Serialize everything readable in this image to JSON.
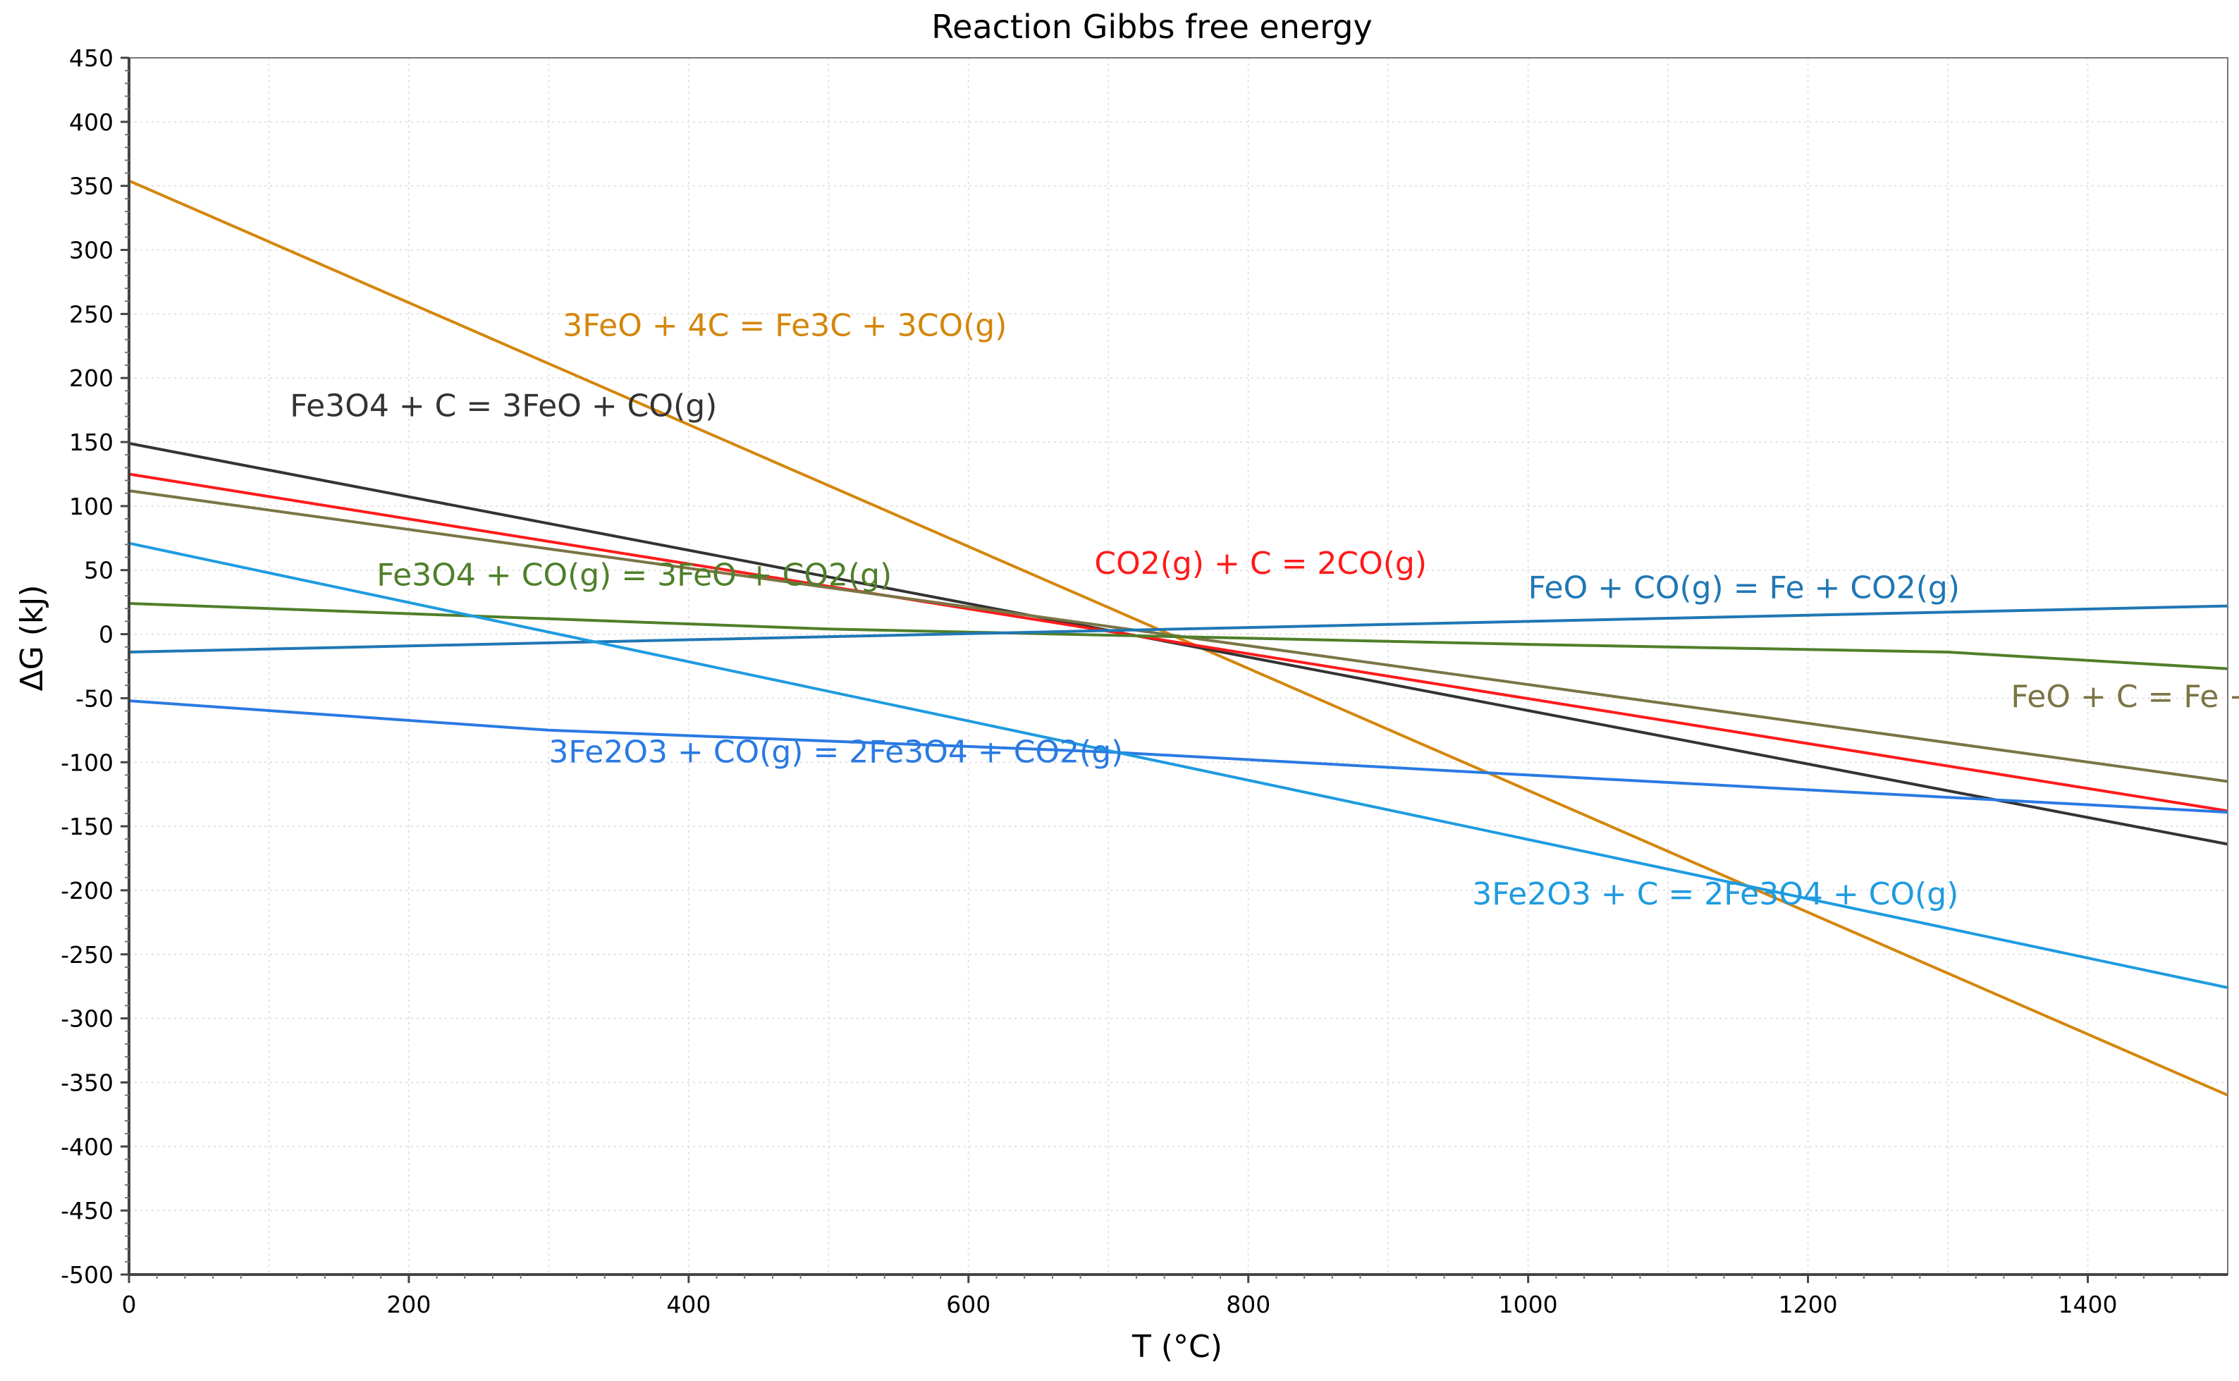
{
  "chart_data": {
    "type": "line",
    "title": "Reaction Gibbs free energy",
    "xlabel": "T (°C)",
    "ylabel": "ΔG (kJ)",
    "xlim": [
      0,
      1500
    ],
    "ylim": [
      -500,
      450
    ],
    "x_ticks": [
      0,
      200,
      400,
      600,
      800,
      1000,
      1200,
      1400
    ],
    "y_ticks": [
      450,
      400,
      350,
      300,
      250,
      200,
      150,
      100,
      50,
      0,
      -50,
      -100,
      -150,
      -200,
      -250,
      -300,
      -350,
      -400,
      -450,
      -500
    ],
    "grid": true,
    "series": [
      {
        "name": "3FeO + 4C = Fe3C + 3CO(g)",
        "color": "#d4860b",
        "x": [
          0,
          1500
        ],
        "y": [
          354,
          -360
        ],
        "label_at": [
          310,
          233
        ]
      },
      {
        "name": "Fe3O4 + C = 3FeO + CO(g)",
        "color": "#333333",
        "x": [
          0,
          1500
        ],
        "y": [
          149,
          -164
        ],
        "label_at": [
          115,
          170
        ]
      },
      {
        "name": "CO2(g) + C = 2CO(g)",
        "color": "#ff1a1a",
        "x": [
          0,
          1500
        ],
        "y": [
          125,
          -138
        ],
        "label_at": [
          690,
          47
        ]
      },
      {
        "name": "FeO + C = Fe + CO(g)",
        "color": "#7b7445",
        "x": [
          0,
          1500
        ],
        "y": [
          112,
          -115
        ],
        "label_at": [
          1345,
          -57
        ]
      },
      {
        "name": "Fe3O4 + CO(g) = 3FeO + CO2(g)",
        "color": "#4f7f2a",
        "x": [
          0,
          500,
          1000,
          1300,
          1500
        ],
        "y": [
          24,
          4,
          -8,
          -14,
          -27
        ],
        "label_at": [
          177,
          38
        ]
      },
      {
        "name": "FeO + CO(g) = Fe + CO2(g)",
        "color": "#1f77b4",
        "x": [
          0,
          1500
        ],
        "y": [
          -14,
          22
        ],
        "label_at": [
          1000,
          28
        ]
      },
      {
        "name": "3Fe2O3 + CO(g) = 2Fe3O4 + CO2(g)",
        "color": "#2a7ae2",
        "x": [
          0,
          300,
          700,
          1000,
          1500
        ],
        "y": [
          -52,
          -75,
          -92,
          -110,
          -139
        ],
        "label_at": [
          300,
          -100
        ]
      },
      {
        "name": "3Fe2O3 + C = 2Fe3O4 + CO(g)",
        "color": "#1e9be0",
        "x": [
          0,
          1500
        ],
        "y": [
          71,
          -276
        ],
        "label_at": [
          960,
          -211
        ]
      }
    ]
  }
}
